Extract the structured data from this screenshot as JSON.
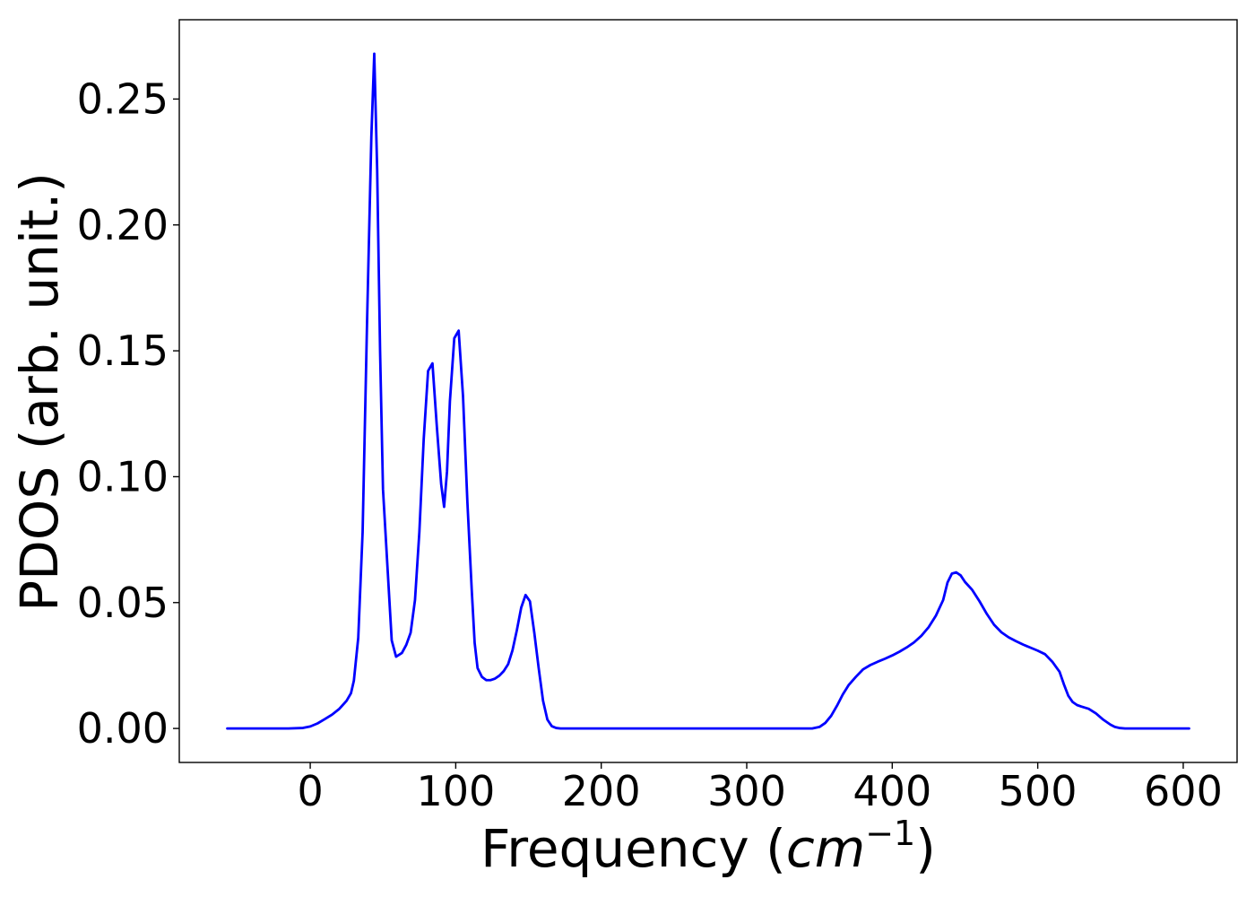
{
  "colors": {
    "series": "#0000ff",
    "axes": "#000000",
    "background": "#ffffff"
  },
  "chart_data": {
    "type": "line",
    "title": "",
    "xlabel": "Frequency",
    "xlabel_unit_base": "cm",
    "xlabel_unit_exp": "−1",
    "ylabel": "PDOS (arb. unit.)",
    "xlim": [
      -90,
      637
    ],
    "ylim": [
      -0.0135,
      0.2815
    ],
    "xticks": [
      0,
      100,
      200,
      300,
      400,
      500,
      600
    ],
    "xtick_labels": [
      "0",
      "100",
      "200",
      "300",
      "400",
      "500",
      "600"
    ],
    "yticks": [
      0.0,
      0.05,
      0.1,
      0.15,
      0.2,
      0.25
    ],
    "ytick_labels": [
      "0.00",
      "0.05",
      "0.10",
      "0.15",
      "0.20",
      "0.25"
    ],
    "grid": false,
    "legend": "none",
    "series": [
      {
        "color": "#0000ff",
        "x": [
          -57,
          -30,
          -15,
          -5,
          0,
          5,
          10,
          15,
          20,
          25,
          28,
          30,
          33,
          36,
          39,
          42,
          44,
          46,
          48,
          50,
          53,
          56,
          59,
          63,
          66,
          69,
          72,
          75,
          78,
          81,
          84,
          87,
          90,
          92,
          94,
          96,
          99,
          102,
          105,
          108,
          111,
          113,
          115,
          118,
          121,
          124,
          127,
          130,
          133,
          136,
          139,
          142,
          145,
          148,
          151,
          154,
          157,
          160,
          163,
          166,
          169,
          172,
          175,
          178,
          181,
          184,
          187,
          190,
          193,
          197,
          205,
          250,
          300,
          345,
          350,
          354,
          358,
          362,
          366,
          370,
          375,
          380,
          385,
          390,
          395,
          400,
          405,
          410,
          415,
          420,
          425,
          430,
          435,
          438,
          441,
          444,
          447,
          450,
          455,
          460,
          465,
          470,
          475,
          480,
          485,
          490,
          495,
          500,
          505,
          510,
          515,
          518,
          521,
          524,
          527,
          530,
          535,
          540,
          545,
          550,
          553,
          556,
          560,
          570,
          600,
          604
        ],
        "y": [
          0,
          0,
          0,
          0.0002,
          0.0008,
          0.002,
          0.0037,
          0.0055,
          0.0078,
          0.011,
          0.014,
          0.019,
          0.036,
          0.078,
          0.16,
          0.235,
          0.268,
          0.222,
          0.15,
          0.095,
          0.065,
          0.035,
          0.0285,
          0.03,
          0.0332,
          0.038,
          0.051,
          0.078,
          0.115,
          0.142,
          0.145,
          0.12,
          0.097,
          0.088,
          0.102,
          0.13,
          0.155,
          0.158,
          0.132,
          0.09,
          0.055,
          0.034,
          0.024,
          0.0205,
          0.0192,
          0.0192,
          0.0198,
          0.021,
          0.0228,
          0.0255,
          0.031,
          0.039,
          0.048,
          0.053,
          0.0505,
          0.038,
          0.024,
          0.011,
          0.0035,
          0.0009,
          0.0002,
          0,
          0,
          0,
          0,
          0,
          0,
          0,
          0,
          0,
          0,
          0,
          0,
          0,
          0.0006,
          0.0022,
          0.005,
          0.009,
          0.0135,
          0.0172,
          0.0205,
          0.0235,
          0.0252,
          0.0265,
          0.0277,
          0.029,
          0.0305,
          0.0322,
          0.0342,
          0.0368,
          0.0402,
          0.0448,
          0.051,
          0.058,
          0.0615,
          0.062,
          0.0608,
          0.0582,
          0.055,
          0.0505,
          0.0455,
          0.0412,
          0.0382,
          0.0362,
          0.0347,
          0.0333,
          0.0321,
          0.0309,
          0.0295,
          0.0265,
          0.0225,
          0.0175,
          0.013,
          0.0105,
          0.0093,
          0.0087,
          0.0078,
          0.006,
          0.0035,
          0.0015,
          0.0006,
          0.0002,
          0,
          0,
          0,
          0
        ]
      }
    ]
  }
}
